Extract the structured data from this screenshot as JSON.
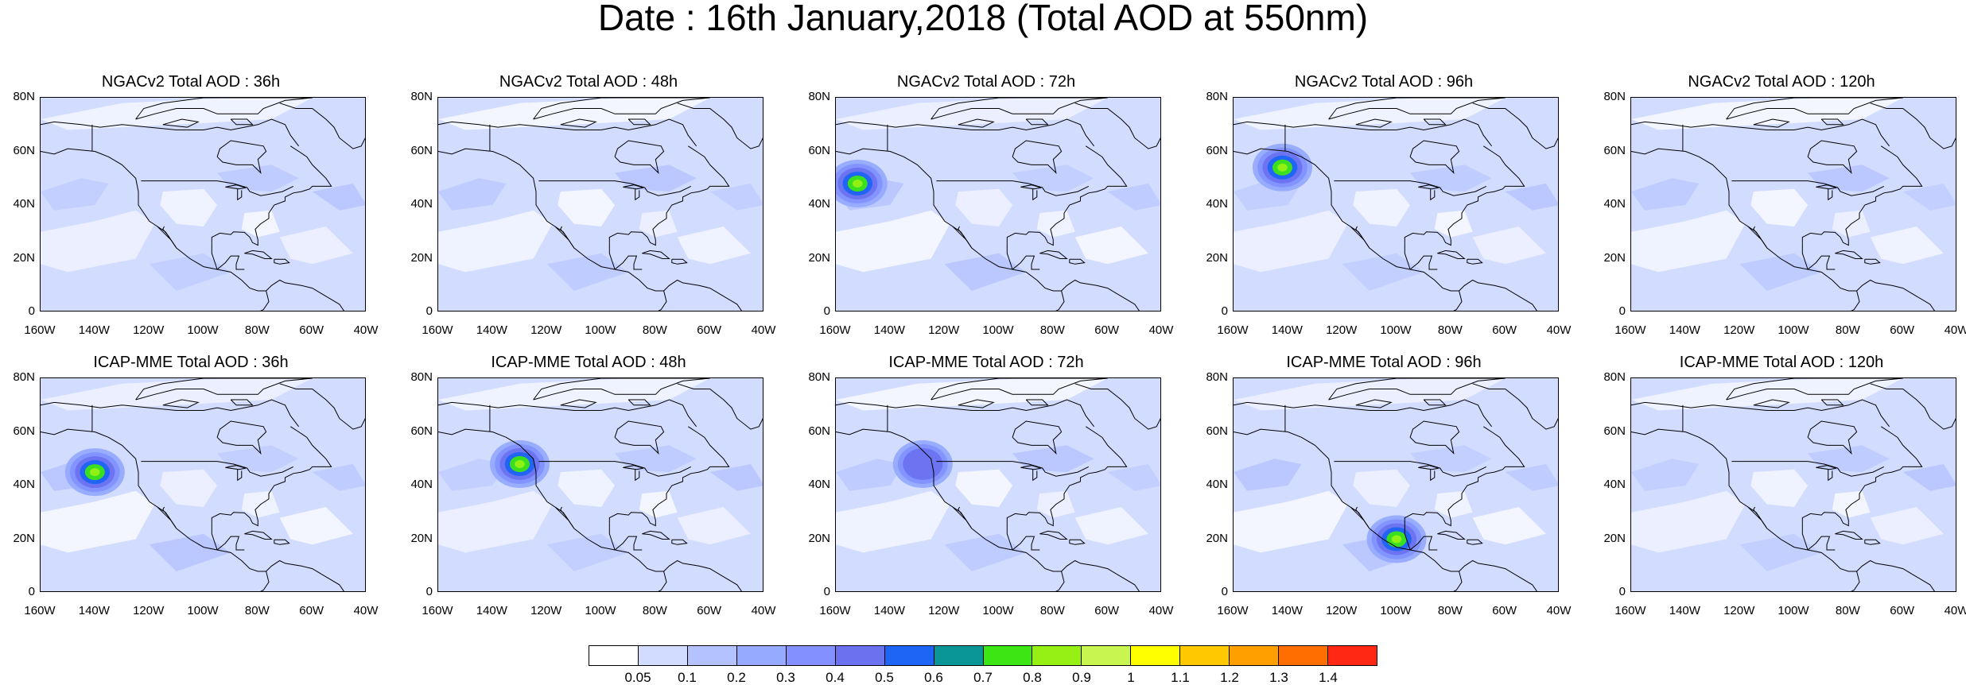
{
  "title": "Date : 16th January,2018 (Total AOD at 550nm)",
  "axes": {
    "y_ticks": [
      "80N",
      "60N",
      "40N",
      "20N",
      "0"
    ],
    "x_ticks": [
      "160W",
      "140W",
      "120W",
      "100W",
      "80W",
      "60W",
      "40W"
    ],
    "lon_range": [
      -160,
      -40
    ],
    "lat_range": [
      0,
      80
    ]
  },
  "panels": [
    {
      "title": "NGACv2 Total AOD : 36h",
      "model": "NGACv2",
      "lead": "36h",
      "plumes": []
    },
    {
      "title": "NGACv2 Total AOD : 48h",
      "model": "NGACv2",
      "lead": "48h",
      "plumes": []
    },
    {
      "title": "NGACv2 Total AOD : 72h",
      "model": "NGACv2",
      "lead": "72h",
      "plumes": [
        {
          "lon": -152,
          "lat": 48,
          "peak": 0.8
        }
      ]
    },
    {
      "title": "NGACv2 Total AOD : 96h",
      "model": "NGACv2",
      "lead": "96h",
      "plumes": [
        {
          "lon": -142,
          "lat": 54,
          "peak": 0.8
        }
      ]
    },
    {
      "title": "NGACv2 Total AOD : 120h",
      "model": "NGACv2",
      "lead": "120h",
      "plumes": []
    },
    {
      "title": "ICAP-MME Total AOD : 36h",
      "model": "ICAP-MME",
      "lead": "36h",
      "plumes": [
        {
          "lon": -140,
          "lat": 45,
          "peak": 0.8
        }
      ]
    },
    {
      "title": "ICAP-MME Total AOD : 48h",
      "model": "ICAP-MME",
      "lead": "48h",
      "plumes": [
        {
          "lon": -130,
          "lat": 48,
          "peak": 0.8
        }
      ]
    },
    {
      "title": "ICAP-MME Total AOD : 72h",
      "model": "ICAP-MME",
      "lead": "72h",
      "plumes": [
        {
          "lon": -128,
          "lat": 48,
          "peak": 0.4
        }
      ]
    },
    {
      "title": "ICAP-MME Total AOD : 96h",
      "model": "ICAP-MME",
      "lead": "96h",
      "plumes": [
        {
          "lon": -100,
          "lat": 20,
          "peak": 0.8
        }
      ]
    },
    {
      "title": "ICAP-MME Total AOD : 120h",
      "model": "ICAP-MME",
      "lead": "120h",
      "plumes": []
    }
  ],
  "colorbar": {
    "labels": [
      "0.05",
      "0.1",
      "0.2",
      "0.3",
      "0.4",
      "0.5",
      "0.6",
      "0.7",
      "0.8",
      "0.9",
      "1",
      "1.1",
      "1.2",
      "1.3",
      "1.4"
    ],
    "colors": [
      "#ffffff",
      "#d2dcff",
      "#b4c3ff",
      "#96aaff",
      "#8291ff",
      "#6a72f0",
      "#1e64f5",
      "#0a9696",
      "#3ce614",
      "#96f014",
      "#c8f550",
      "#ffff00",
      "#ffc800",
      "#ffa000",
      "#ff6e00",
      "#ff2814"
    ]
  }
}
